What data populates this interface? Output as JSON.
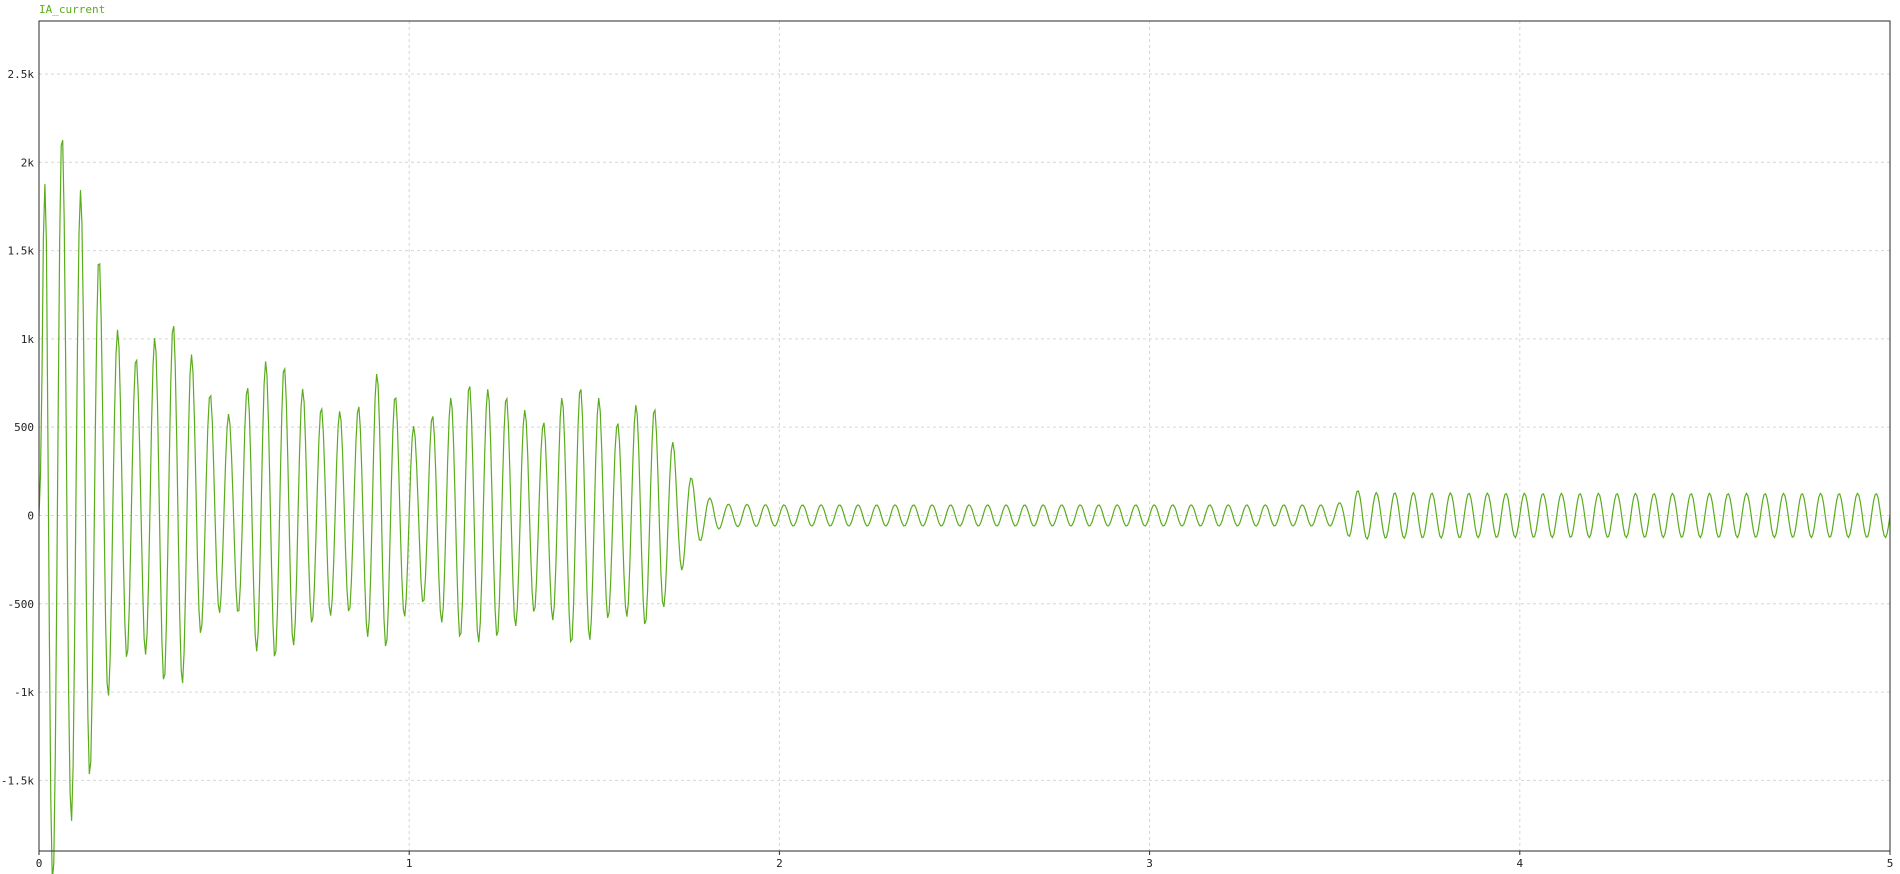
{
  "chart_data": {
    "type": "line",
    "title": "",
    "xlabel": "",
    "ylabel": "",
    "xlim": [
      0,
      5
    ],
    "ylim": [
      -1900,
      2800
    ],
    "grid": true,
    "legend_position": "top-left",
    "x_ticks": [
      0,
      1,
      2,
      3,
      4,
      5
    ],
    "x_tick_labels": [
      "0",
      "1",
      "2",
      "3",
      "4",
      "5"
    ],
    "y_ticks": [
      2500,
      2000,
      1500,
      1000,
      500,
      0,
      -500,
      -1000,
      -1500
    ],
    "y_tick_labels": [
      "2.5k",
      "2k",
      "1.5k",
      "1k",
      "500",
      "0",
      "-500",
      "-1k",
      "-1.5k"
    ],
    "series": [
      {
        "name": "IA_current",
        "color": "#5aac1c",
        "sample_step": 0.004,
        "x_range": [
          0,
          5
        ],
        "oscillation_hz": 20,
        "peak_envelope": [
          [
            0.0,
            0
          ],
          [
            0.02,
            2380
          ],
          [
            0.08,
            1900
          ],
          [
            0.14,
            1580
          ],
          [
            0.2,
            1000
          ],
          [
            0.27,
            800
          ],
          [
            0.33,
            1000
          ],
          [
            0.38,
            1050
          ],
          [
            0.44,
            700
          ],
          [
            0.52,
            520
          ],
          [
            0.6,
            850
          ],
          [
            0.66,
            830
          ],
          [
            0.75,
            600
          ],
          [
            0.85,
            560
          ],
          [
            0.92,
            820
          ],
          [
            1.02,
            470
          ],
          [
            1.1,
            640
          ],
          [
            1.16,
            740
          ],
          [
            1.25,
            690
          ],
          [
            1.36,
            520
          ],
          [
            1.44,
            740
          ],
          [
            1.5,
            700
          ],
          [
            1.56,
            520
          ],
          [
            1.62,
            640
          ],
          [
            1.67,
            600
          ],
          [
            1.72,
            380
          ],
          [
            1.76,
            220
          ],
          [
            1.8,
            110
          ],
          [
            1.85,
            65
          ],
          [
            2.0,
            60
          ],
          [
            3.5,
            60
          ],
          [
            3.52,
            80
          ],
          [
            3.55,
            145
          ],
          [
            3.6,
            130
          ],
          [
            4.0,
            125
          ],
          [
            5.0,
            125
          ]
        ]
      }
    ]
  }
}
